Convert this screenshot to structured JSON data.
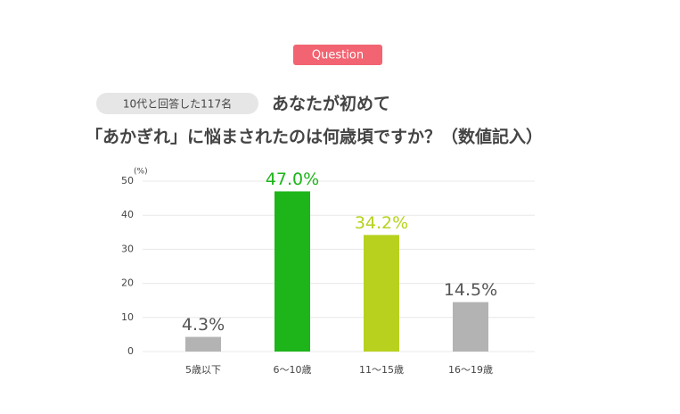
{
  "header": {
    "badge": "Question",
    "respondents": "10代と回答した117名",
    "title_lines": [
      "あなたが初めて",
      "「あかぎれ」に悩まされたのは何歳頃ですか？（数値記入）"
    ]
  },
  "chart_data": {
    "type": "bar",
    "y_unit": "(%)",
    "categories": [
      "5歳以下",
      "6～10歳",
      "11～15歳",
      "16～19歳"
    ],
    "values": [
      4.3,
      47.0,
      34.2,
      14.5
    ],
    "value_labels": [
      "4.3%",
      "47.0%",
      "34.2%",
      "14.5%"
    ],
    "colors": [
      "#b3b3b3",
      "#1db51a",
      "#b7d11e",
      "#b3b3b3"
    ],
    "label_colors": [
      "#555555",
      "#1db51a",
      "#b7d11e",
      "#555555"
    ],
    "ylim": [
      0,
      50
    ],
    "yticks": [
      0,
      10,
      20,
      30,
      40,
      50
    ],
    "grid": true
  }
}
